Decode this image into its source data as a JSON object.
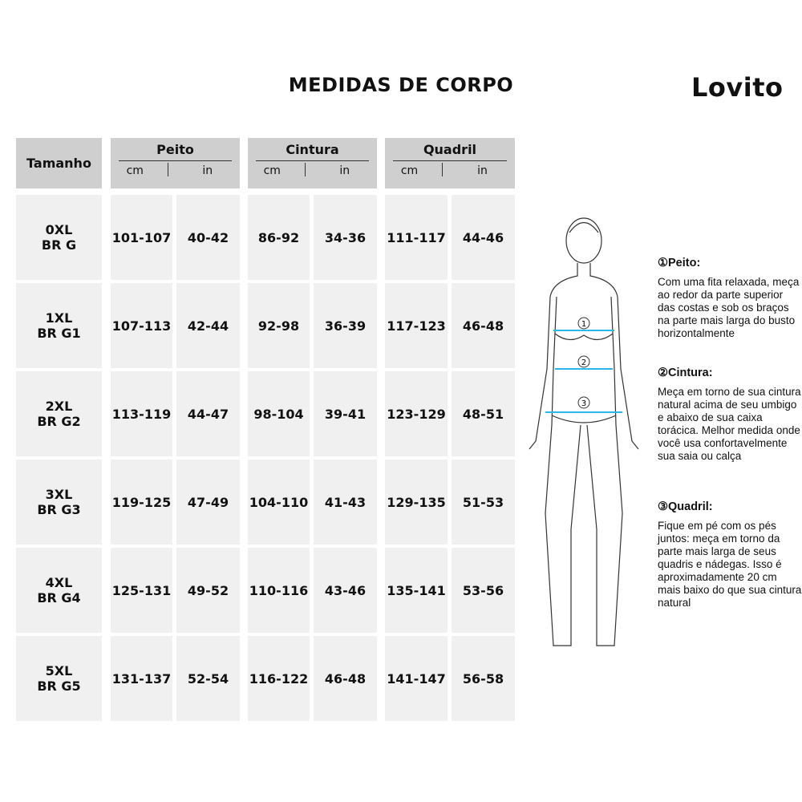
{
  "title": "MEDIDAS DE CORPO",
  "brand": "Lovito",
  "table": {
    "size_header": "Tamanho",
    "groups": [
      {
        "label": "Peito",
        "units": [
          "cm",
          "in"
        ]
      },
      {
        "label": "Cintura",
        "units": [
          "cm",
          "in"
        ]
      },
      {
        "label": "Quadril",
        "units": [
          "cm",
          "in"
        ]
      }
    ],
    "rows": [
      {
        "size": "0XL",
        "br": "BR G",
        "values": [
          "101-107",
          "40-42",
          "86-92",
          "34-36",
          "111-117",
          "44-46"
        ]
      },
      {
        "size": "1XL",
        "br": "BR G1",
        "values": [
          "107-113",
          "42-44",
          "92-98",
          "36-39",
          "117-123",
          "46-48"
        ]
      },
      {
        "size": "2XL",
        "br": "BR G2",
        "values": [
          "113-119",
          "44-47",
          "98-104",
          "39-41",
          "123-129",
          "48-51"
        ]
      },
      {
        "size": "3XL",
        "br": "BR G3",
        "values": [
          "119-125",
          "47-49",
          "104-110",
          "41-43",
          "129-135",
          "51-53"
        ]
      },
      {
        "size": "4XL",
        "br": "BR G4",
        "values": [
          "125-131",
          "49-52",
          "110-116",
          "43-46",
          "135-141",
          "53-56"
        ]
      },
      {
        "size": "5XL",
        "br": "BR G5",
        "values": [
          "131-137",
          "52-54",
          "116-122",
          "46-48",
          "141-147",
          "56-58"
        ]
      }
    ]
  },
  "figure": {
    "markers": [
      "1",
      "2",
      "3"
    ],
    "line_color": "#29b6e8"
  },
  "notes": [
    {
      "title": "①Peito:",
      "text": "Com uma fita relaxada, meça ao redor da parte superior das costas e sob os braços na parte mais larga do busto horizontalmente"
    },
    {
      "title": "②Cintura:",
      "text": "Meça em torno de sua cintura natural acima de seu umbigo e abaixo de sua caixa torácica. Melhor medida onde você usa confortavelmente sua saia ou calça"
    },
    {
      "title": "③Quadril:",
      "text": "Fique em pé com os pés juntos: meça em torno da parte mais larga de seus quadris e nádegas. Isso é aproximadamente 20 cm mais baixo do que sua cintura natural"
    }
  ]
}
